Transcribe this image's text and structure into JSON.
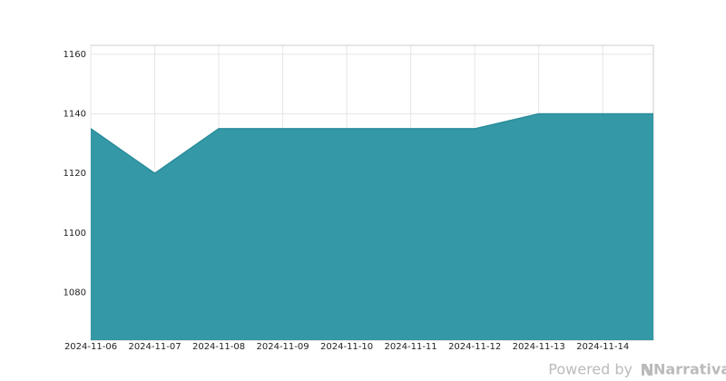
{
  "chart_data": {
    "type": "area",
    "x": [
      "2024-11-06",
      "2024-11-07",
      "2024-11-08",
      "2024-11-09",
      "2024-11-10",
      "2024-11-11",
      "2024-11-12",
      "2024-11-13",
      "2024-11-14",
      "2024-11-14T19:00"
    ],
    "values": [
      1135,
      1120,
      1135,
      1135,
      1135,
      1135,
      1135,
      1140,
      1140,
      1140
    ],
    "color": "#3598a6",
    "line_color": "#2a8d9b",
    "xlim": [
      "2024-11-06",
      "2024-11-14T19:00"
    ],
    "xticks": [
      "2024-11-06",
      "2024-11-07",
      "2024-11-08",
      "2024-11-09",
      "2024-11-10",
      "2024-11-11",
      "2024-11-12",
      "2024-11-13",
      "2024-11-14"
    ],
    "ylim": [
      1064,
      1163
    ],
    "yticks": [
      1080,
      1100,
      1120,
      1140,
      1160
    ],
    "grid": true
  },
  "footer": {
    "powered": "Powered by",
    "brand": "Narrativa"
  }
}
